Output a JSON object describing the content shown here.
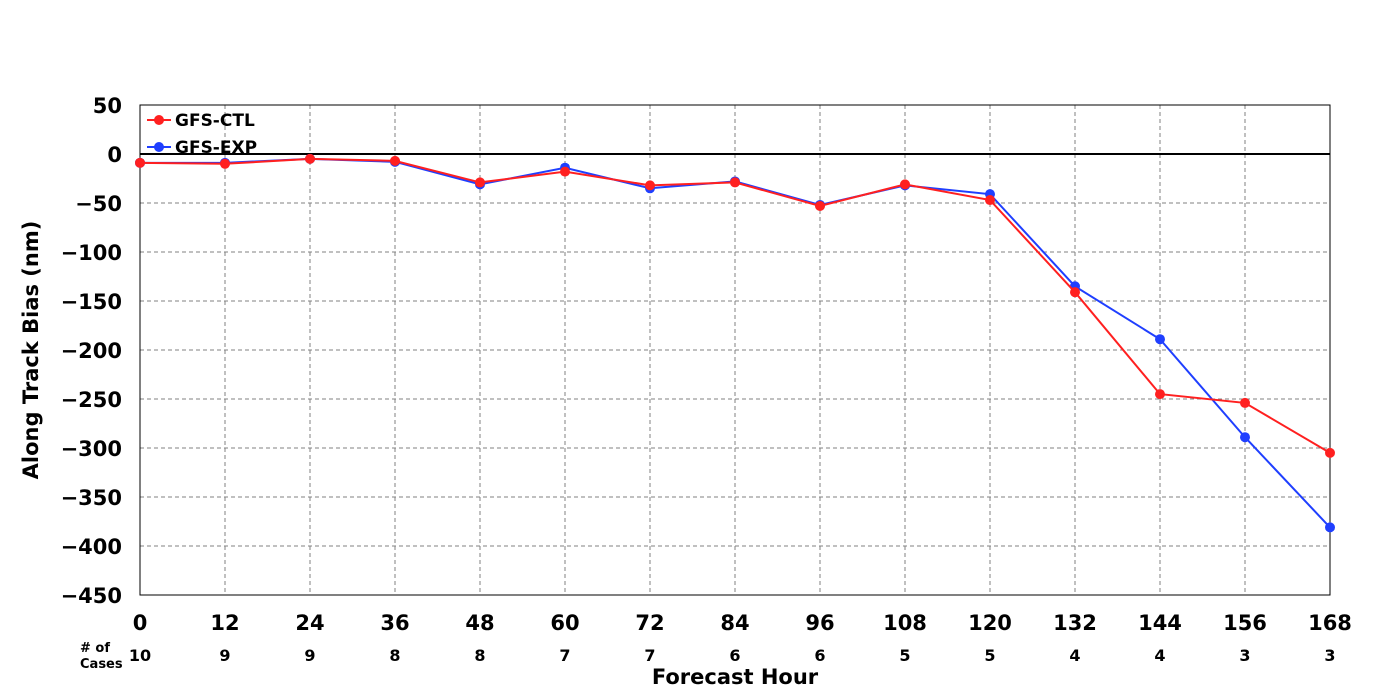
{
  "chart_data": {
    "type": "line",
    "xlabel": "Forecast Hour",
    "ylabel": "Along Track Bias (nm)",
    "x": [
      0,
      12,
      24,
      36,
      48,
      60,
      72,
      84,
      96,
      108,
      120,
      132,
      144,
      156,
      168
    ],
    "x_ticks": [
      "0",
      "12",
      "24",
      "36",
      "48",
      "60",
      "72",
      "84",
      "96",
      "108",
      "120",
      "132",
      "144",
      "156",
      "168"
    ],
    "xlim": [
      0,
      168
    ],
    "ylim": [
      -450,
      50
    ],
    "y_ticks": [
      50,
      0,
      -50,
      -100,
      -150,
      -200,
      -250,
      -300,
      -350,
      -400,
      -450
    ],
    "y_tick_labels": [
      "50",
      "0",
      "−50",
      "−100",
      "−150",
      "−200",
      "−250",
      "−300",
      "−350",
      "−400",
      "−450"
    ],
    "grid": true,
    "legend_position": "top-left",
    "zero_line": true,
    "cases_label_line1": "# of",
    "cases_label_line2": "Cases",
    "cases": [
      "10",
      "9",
      "9",
      "8",
      "8",
      "7",
      "7",
      "6",
      "6",
      "5",
      "5",
      "4",
      "4",
      "3",
      "3"
    ],
    "series": [
      {
        "name": "GFS-EXP",
        "color": "#1f3fff",
        "values": [
          -9,
          -9,
          -5,
          -8,
          -31,
          -14,
          -35,
          -28,
          -52,
          -32,
          -41,
          -135,
          -189,
          -289,
          -381
        ]
      },
      {
        "name": "GFS-CTL",
        "color": "#ff2020",
        "values": [
          -9,
          -10,
          -5,
          -7,
          -29,
          -18,
          -32,
          -29,
          -53,
          -31,
          -47,
          -141,
          -245,
          -254,
          -305
        ]
      }
    ]
  }
}
